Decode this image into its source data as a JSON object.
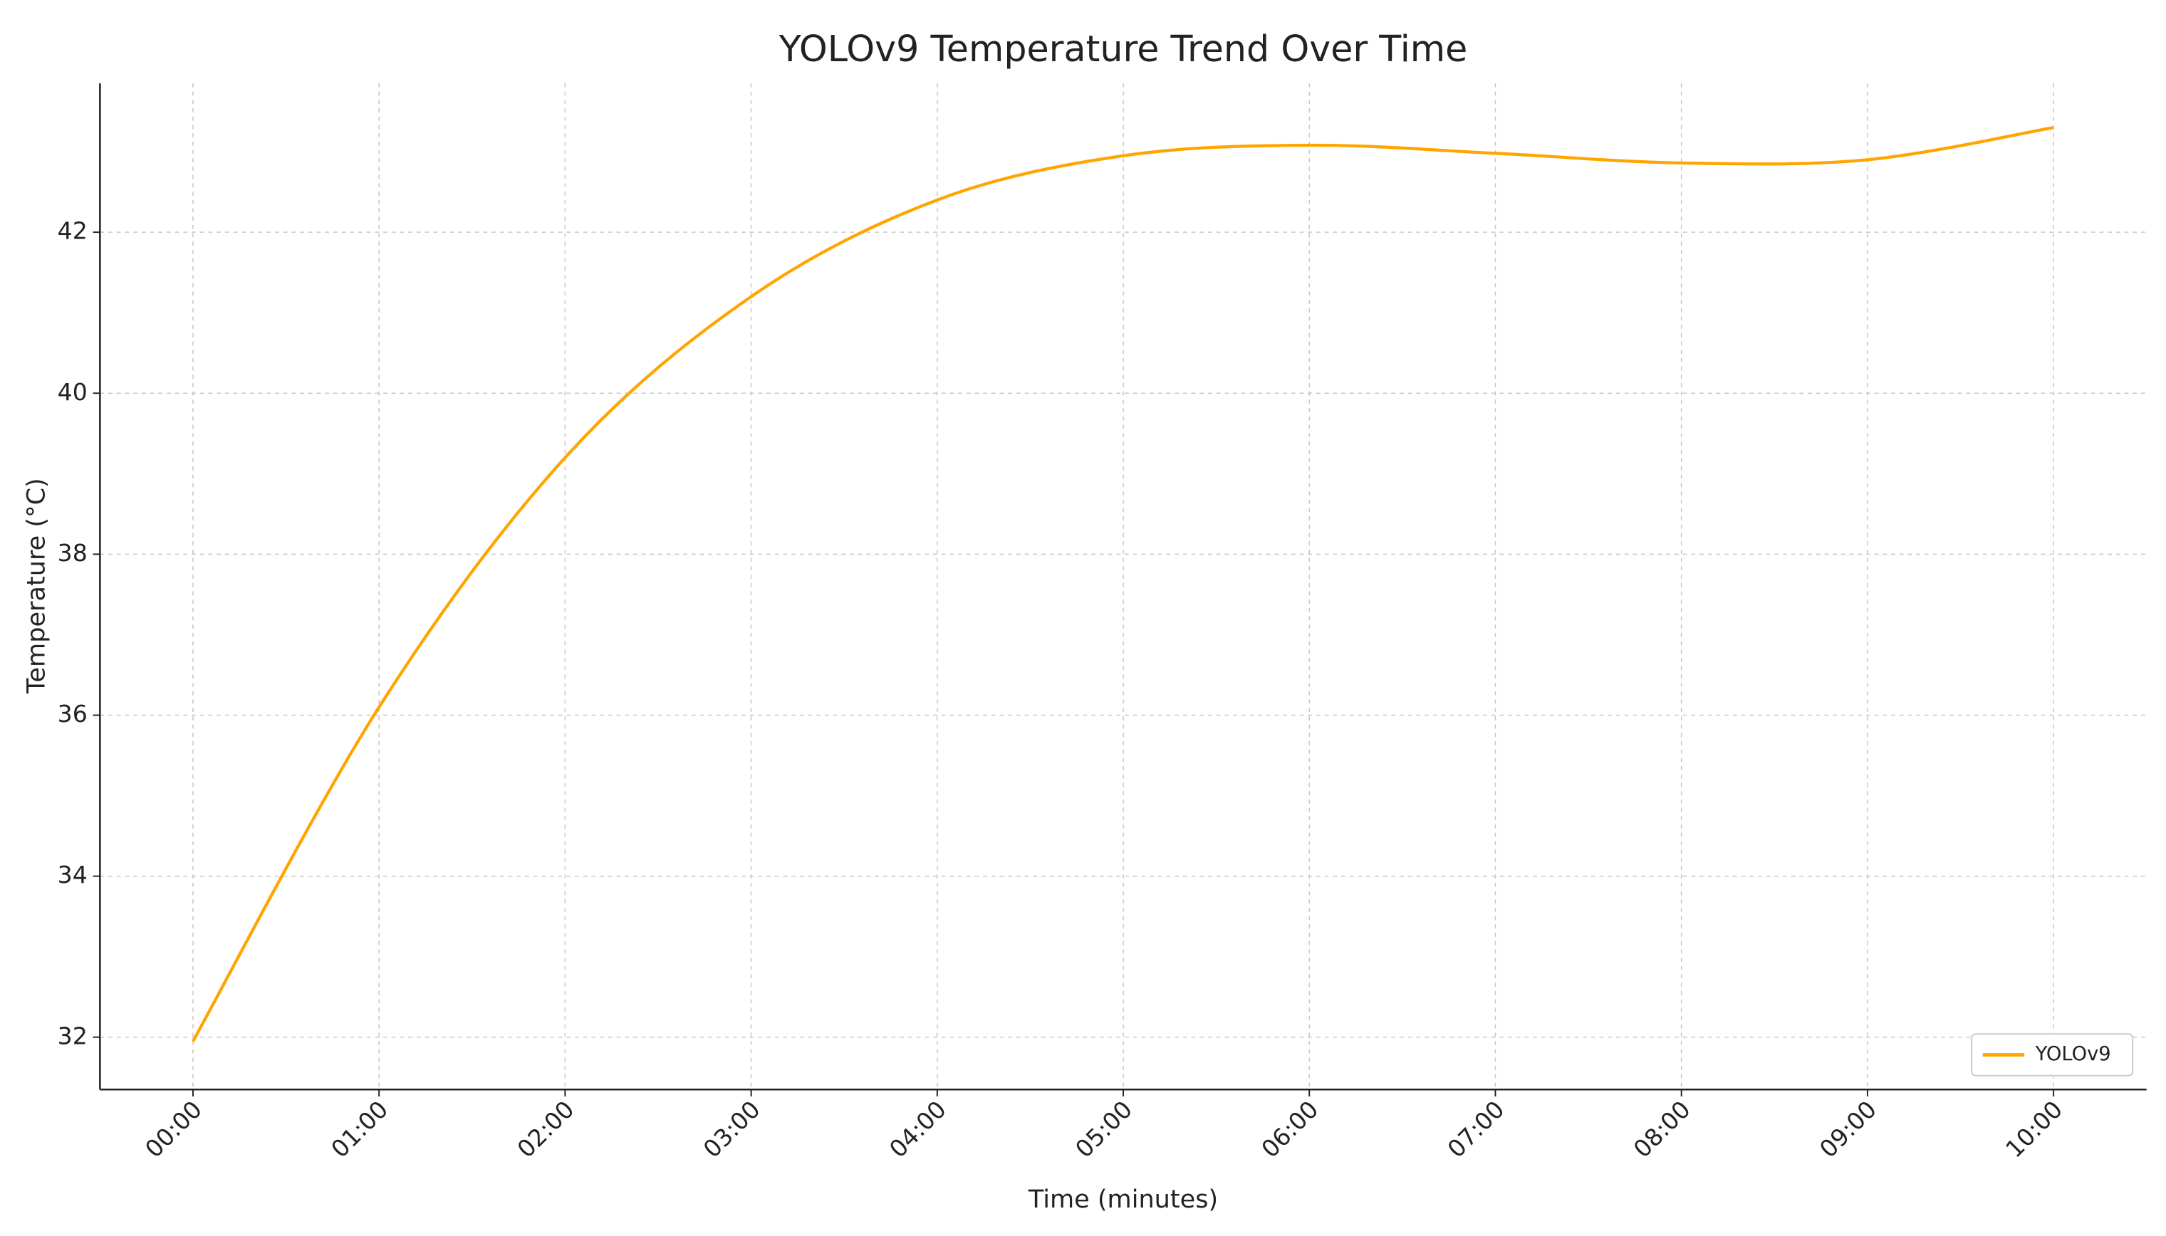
{
  "chart_data": {
    "type": "line",
    "title": "YOLOv9 Temperature Trend Over Time",
    "x_label": "Time (minutes)",
    "y_label": "Temperature (°C)",
    "categories": [
      "00:00",
      "01:00",
      "02:00",
      "03:00",
      "04:00",
      "05:00",
      "06:00",
      "07:00",
      "08:00",
      "09:00",
      "10:00"
    ],
    "series": [
      {
        "name": "YOLOv9",
        "color": "#ffa500",
        "values": [
          31.95,
          36.1,
          39.2,
          41.2,
          42.4,
          42.95,
          43.08,
          42.98,
          42.86,
          42.9,
          43.3
        ]
      }
    ],
    "ylim": [
      31.35,
      43.85
    ],
    "yticks": [
      32,
      34,
      36,
      38,
      40,
      42
    ],
    "grid": true,
    "legend": "lower right"
  }
}
